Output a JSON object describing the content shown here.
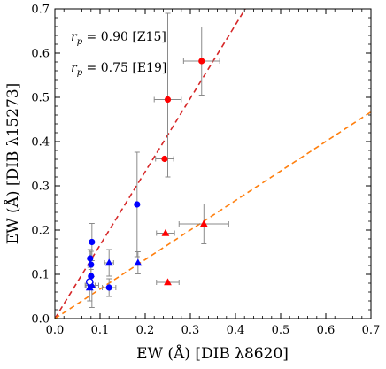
{
  "chart_data": {
    "type": "scatter",
    "xlabel": "EW (Å) [DIB λ8620]",
    "ylabel": "EW (Å) [DIB λ15273]",
    "xlim": [
      0.0,
      0.7
    ],
    "ylim": [
      0.0,
      0.7
    ],
    "xticks": [
      "0.0",
      "0.1",
      "0.2",
      "0.3",
      "0.4",
      "0.5",
      "0.6",
      "0.7"
    ],
    "yticks": [
      "0.0",
      "0.1",
      "0.2",
      "0.3",
      "0.4",
      "0.5",
      "0.6",
      "0.7"
    ],
    "grid": false,
    "annotations": [
      {
        "symbol": "r",
        "subscript": "p",
        "text": " = 0.90 [Z15]"
      },
      {
        "symbol": "r",
        "subscript": "p",
        "text": " = 0.75 [E19]"
      }
    ],
    "fit_lines": [
      {
        "slope": 1.66,
        "intercept": 0.0,
        "color": "#d62728"
      },
      {
        "slope": 0.667,
        "intercept": 0.0,
        "color": "#ff7f0e"
      }
    ],
    "series": [
      {
        "marker": "circle",
        "color": "#ff0000",
        "points": [
          {
            "x": 0.325,
            "y": 0.582,
            "xerr": 0.04,
            "yerr_up": 0.077,
            "yerr_down": 0.077
          },
          {
            "x": 0.25,
            "y": 0.495,
            "xerr": 0.03,
            "yerr_up": 0.195,
            "yerr_down": 0.175
          },
          {
            "x": 0.243,
            "y": 0.361,
            "xerr": 0.02,
            "yerr_up": 0.0,
            "yerr_down": 0.0
          }
        ]
      },
      {
        "marker": "triangle",
        "color": "#ff0000",
        "points": [
          {
            "x": 0.33,
            "y": 0.214,
            "xerr": 0.055,
            "yerr_up": 0.045,
            "yerr_down": 0.045
          },
          {
            "x": 0.245,
            "y": 0.193,
            "xerr": 0.02,
            "yerr_up": 0.0,
            "yerr_down": 0.0
          },
          {
            "x": 0.25,
            "y": 0.082,
            "xerr": 0.025,
            "yerr_up": 0.0,
            "yerr_down": 0.0
          }
        ]
      },
      {
        "marker": "circle",
        "color": "#0000ff",
        "points": [
          {
            "x": 0.182,
            "y": 0.258,
            "xerr": 0.0,
            "yerr_up": 0.118,
            "yerr_down": 0.118
          },
          {
            "x": 0.082,
            "y": 0.173,
            "xerr": 0.0,
            "yerr_up": 0.042,
            "yerr_down": 0.042
          },
          {
            "x": 0.078,
            "y": 0.136,
            "xerr": 0.0,
            "yerr_up": 0.02,
            "yerr_down": 0.02
          },
          {
            "x": 0.08,
            "y": 0.122,
            "xerr": 0.0,
            "yerr_up": 0.03,
            "yerr_down": 0.03
          },
          {
            "x": 0.08,
            "y": 0.096,
            "xerr": 0.0,
            "yerr_up": 0.015,
            "yerr_down": 0.015
          },
          {
            "x": 0.12,
            "y": 0.07,
            "xerr": 0.015,
            "yerr_up": 0.02,
            "yerr_down": 0.02
          },
          {
            "x": 0.079,
            "y": 0.075,
            "xerr": 0.01,
            "yerr_up": 0.01,
            "yerr_down": 0.0
          }
        ]
      },
      {
        "marker": "triangle",
        "color": "#0000ff",
        "points": [
          {
            "x": 0.12,
            "y": 0.126,
            "xerr": 0.01,
            "yerr_up": 0.03,
            "yerr_down": 0.03
          },
          {
            "x": 0.184,
            "y": 0.126,
            "xerr": 0.0,
            "yerr_up": 0.025,
            "yerr_down": 0.025
          },
          {
            "x": 0.082,
            "y": 0.075,
            "xerr": 0.015,
            "yerr_up": 0.02,
            "yerr_down": 0.05
          },
          {
            "x": 0.077,
            "y": 0.07,
            "xerr": 0.0,
            "yerr_up": 0.0,
            "yerr_down": 0.03
          }
        ]
      },
      {
        "marker": "circle-open",
        "color": "#0000ff",
        "points": [
          {
            "x": 0.077,
            "y": 0.083,
            "xerr": 0.0,
            "yerr_up": 0.0,
            "yerr_down": 0.0
          }
        ]
      }
    ]
  }
}
